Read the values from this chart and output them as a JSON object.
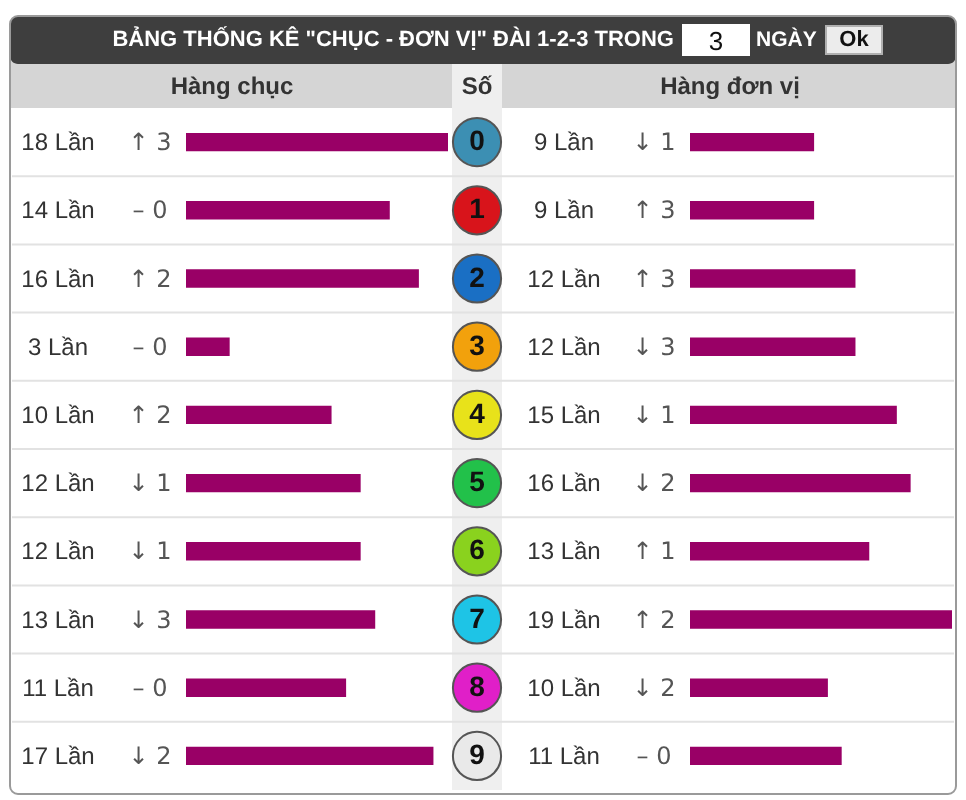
{
  "chart_data": [
    {
      "type": "other",
      "title": "BẢNG THỐNG KÊ \"CHỤC - ĐƠN VỊ\" ĐÀI 1-2-3 TRONG",
      "annotations": [
        "3",
        "NGÀY",
        "Ok"
      ]
    },
    {
      "type": "bar",
      "orientation": "horizontal",
      "title": "Hàng chục",
      "ylabel": "Số",
      "categories": [
        "0",
        "1",
        "2",
        "3",
        "4",
        "5",
        "6",
        "7",
        "8",
        "9"
      ],
      "values": [
        18,
        14,
        16,
        3,
        10,
        12,
        12,
        13,
        11,
        17
      ],
      "color": "#990066",
      "value_labels": [
        "18 Lần",
        "14 Lần",
        "16 Lần",
        "3 Lần",
        "10 Lần",
        "12 Lần",
        "12 Lần",
        "13 Lần",
        "11 Lần",
        "17 Lần"
      ],
      "annotations": [
        "↑ 3",
        "– 0",
        "↑ 2",
        "– 0",
        "↑ 2",
        "↓ 1",
        "↓ 1",
        "↓ 3",
        "– 0",
        "↓ 2"
      ]
    },
    {
      "type": "bar",
      "orientation": "horizontal",
      "title": "Hàng đơn vị",
      "tick_labels": false,
      "categories": [
        "0",
        "1",
        "2",
        "3",
        "4",
        "5",
        "6",
        "7",
        "8",
        "9"
      ],
      "values": [
        9,
        9,
        12,
        12,
        15,
        16,
        13,
        19,
        10,
        11
      ],
      "color": "#990066",
      "value_labels": [
        "9 Lần",
        "9 Lần",
        "12 Lần",
        "12 Lần",
        "15 Lần",
        "16 Lần",
        "13 Lần",
        "19 Lần",
        "10 Lần",
        "11 Lần"
      ],
      "annotations": [
        "↓ 1",
        "↑ 3",
        "↑ 3",
        "↓ 3",
        "↓ 1",
        "↓ 2",
        "↑ 1",
        "↑ 2",
        "↓ 2",
        "– 0"
      ]
    }
  ]
}
